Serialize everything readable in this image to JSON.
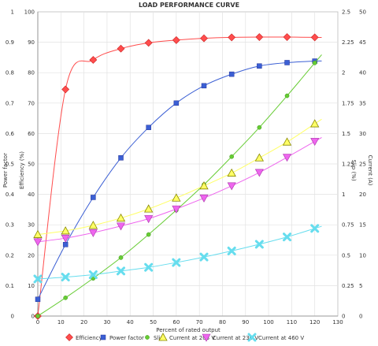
{
  "chart_data": {
    "type": "line",
    "title": "LOAD PERFORMANCE CURVE",
    "xlabel": "Percent of rated output",
    "xlim": [
      0,
      130
    ],
    "x_ticks": [
      "0",
      "10",
      "20",
      "30",
      "40",
      "50",
      "60",
      "70",
      "80",
      "90",
      "100",
      "110",
      "120",
      "130"
    ],
    "y_axes": {
      "efficiency": {
        "label": "Efficiency (%)",
        "range": [
          0,
          100
        ],
        "ticks": [
          "0",
          "10",
          "20",
          "30",
          "40",
          "50",
          "60",
          "70",
          "80",
          "90",
          "100"
        ]
      },
      "power_factor": {
        "label": "Power factor",
        "range": [
          0,
          1
        ],
        "ticks": [
          "0",
          "0.1",
          "0.2",
          "0.3",
          "0.4",
          "0.5",
          "0.6",
          "0.7",
          "0.8",
          "0.9",
          "1"
        ]
      },
      "slip": {
        "label": "Slip (%)",
        "range": [
          0,
          2.5
        ],
        "ticks": [
          "0",
          "0.25",
          "0.5",
          "0.75",
          "1",
          "1.25",
          "1.5",
          "1.75",
          "2",
          "2.25",
          "2.5"
        ]
      },
      "current": {
        "label": "Current (A)",
        "range": [
          0,
          50
        ],
        "ticks": [
          "0",
          "5",
          "10",
          "15",
          "20",
          "25",
          "30",
          "35",
          "40",
          "45",
          "50"
        ]
      }
    },
    "grid": true,
    "legend_position": "bottom",
    "series": [
      {
        "name": "Efficiency",
        "axis": "efficiency",
        "color": "#ff4d4d",
        "marker": "diamond",
        "x": [
          0,
          12,
          24,
          36,
          48,
          60,
          72,
          84,
          96,
          108,
          120
        ],
        "y": [
          0,
          74.5,
          84.2,
          87.9,
          89.8,
          90.7,
          91.3,
          91.6,
          91.7,
          91.7,
          91.6
        ]
      },
      {
        "name": "Power factor",
        "axis": "power_factor",
        "color": "#3b5fd4",
        "marker": "square",
        "x": [
          0,
          12,
          24,
          36,
          48,
          60,
          72,
          84,
          96,
          108,
          120
        ],
        "y": [
          0.055,
          0.235,
          0.39,
          0.52,
          0.62,
          0.7,
          0.757,
          0.795,
          0.822,
          0.833,
          0.838
        ]
      },
      {
        "name": "Slip",
        "axis": "slip",
        "color": "#66cc33",
        "marker": "circle",
        "x": [
          0,
          12,
          24,
          36,
          48,
          60,
          72,
          84,
          96,
          108,
          120
        ],
        "y": [
          0.0,
          0.15,
          0.31,
          0.48,
          0.67,
          0.87,
          1.08,
          1.31,
          1.55,
          1.81,
          2.08
        ]
      },
      {
        "name": "Current at 208 V",
        "axis": "current",
        "color": "#ffff66",
        "marker": "triangle-up",
        "x": [
          0,
          12,
          24,
          36,
          48,
          60,
          72,
          84,
          96,
          108,
          120
        ],
        "y": [
          13.4,
          14.0,
          14.9,
          16.1,
          17.6,
          19.4,
          21.4,
          23.5,
          26.0,
          28.6,
          31.6
        ]
      },
      {
        "name": "Current at 230 V",
        "axis": "current",
        "color": "#ee66ee",
        "marker": "triangle-down",
        "x": [
          0,
          12,
          24,
          36,
          48,
          60,
          72,
          84,
          96,
          108,
          120
        ],
        "y": [
          12.2,
          12.8,
          13.7,
          14.8,
          16.0,
          17.6,
          19.4,
          21.4,
          23.6,
          26.1,
          28.7
        ]
      },
      {
        "name": "Current at 460 V",
        "axis": "current",
        "color": "#66ddee",
        "marker": "cross",
        "x": [
          0,
          12,
          24,
          36,
          48,
          60,
          72,
          84,
          96,
          108,
          120
        ],
        "y": [
          6.1,
          6.4,
          6.8,
          7.4,
          8.0,
          8.8,
          9.7,
          10.7,
          11.8,
          13.0,
          14.4
        ]
      }
    ]
  }
}
